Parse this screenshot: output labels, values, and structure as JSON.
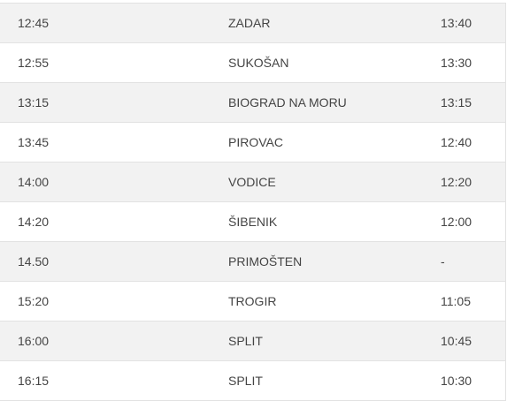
{
  "table": {
    "rows": [
      [
        "12:45",
        "ZADAR",
        "13:40"
      ],
      [
        "12:55",
        "SUKOŠAN",
        "13:30"
      ],
      [
        "13:15",
        "BIOGRAD NA MORU",
        "13:15"
      ],
      [
        "13:45",
        "PIROVAC",
        "12:40"
      ],
      [
        "14:00",
        "VODICE",
        "12:20"
      ],
      [
        "14:20",
        "ŠIBENIK",
        "12:00"
      ],
      [
        "14.50",
        "PRIMOŠTEN",
        "-"
      ],
      [
        "15:20",
        "TROGIR",
        "11:05"
      ],
      [
        "16:00",
        "SPLIT",
        "10:45"
      ],
      [
        "16:15",
        "SPLIT",
        "10:30"
      ]
    ]
  }
}
